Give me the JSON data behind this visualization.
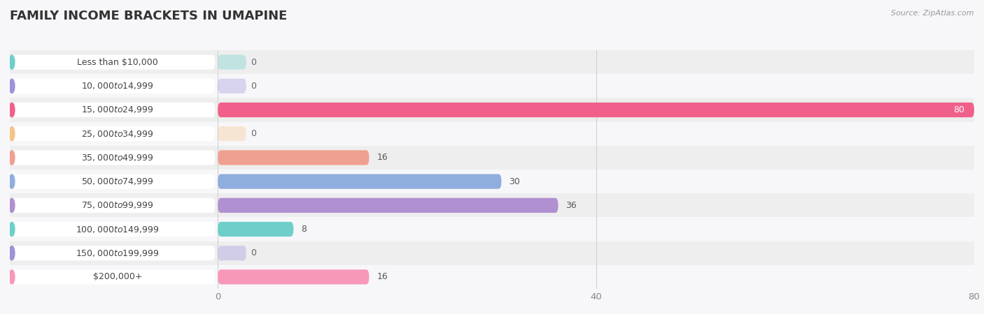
{
  "title": "FAMILY INCOME BRACKETS IN UMAPINE",
  "source": "Source: ZipAtlas.com",
  "categories": [
    "Less than $10,000",
    "$10,000 to $14,999",
    "$15,000 to $24,999",
    "$25,000 to $34,999",
    "$35,000 to $49,999",
    "$50,000 to $74,999",
    "$75,000 to $99,999",
    "$100,000 to $149,999",
    "$150,000 to $199,999",
    "$200,000+"
  ],
  "values": [
    0,
    0,
    80,
    0,
    16,
    30,
    36,
    8,
    0,
    16
  ],
  "bar_colors": [
    "#6ecfca",
    "#a090d8",
    "#f0608a",
    "#f5c48a",
    "#f0a090",
    "#90aedd",
    "#b090d0",
    "#6ecfca",
    "#a090d8",
    "#f898b8"
  ],
  "background_color": "#f7f7fa",
  "xlim_left": -22,
  "xlim_right": 80,
  "xticks": [
    0,
    40,
    80
  ],
  "bar_height": 0.62,
  "title_fontsize": 13,
  "label_fontsize": 9,
  "tick_fontsize": 9.5,
  "source_fontsize": 8
}
